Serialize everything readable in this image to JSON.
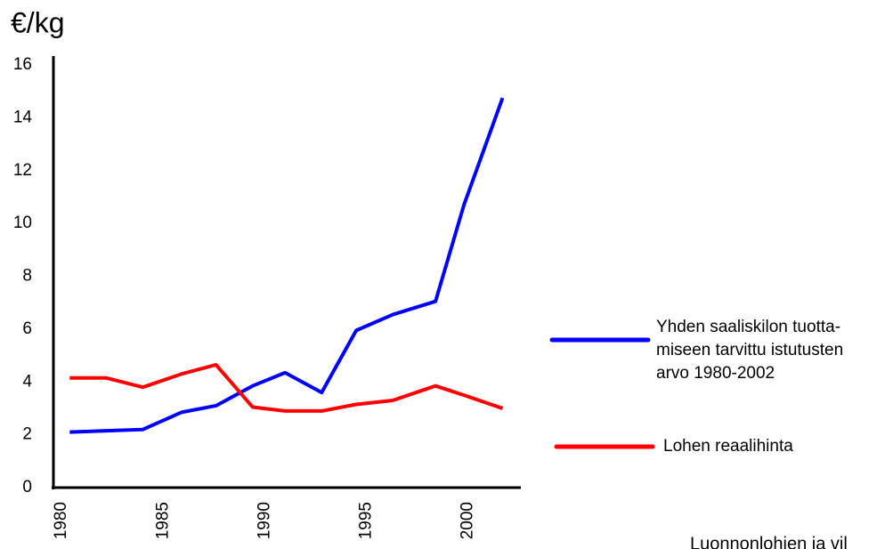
{
  "chart_data": {
    "type": "line",
    "y_label": "€/kg",
    "x": [
      1980.4,
      1982.2,
      1984.0,
      1985.9,
      1987.6,
      1989.4,
      1991.0,
      1992.8,
      1994.5,
      1996.3,
      1998.4,
      1999.8,
      2001.7
    ],
    "series": [
      {
        "name": "Yhden saaliskilon tuotta-\nmiseen tarvittu istutusten\narvo 1980-2002",
        "color": "#0000ff",
        "values": [
          2.1,
          2.15,
          2.2,
          2.85,
          3.1,
          3.85,
          4.35,
          3.6,
          5.95,
          6.55,
          7.05,
          10.7,
          14.75
        ]
      },
      {
        "name": "Lohen reaalihinta",
        "color": "#ff0000",
        "values": [
          4.15,
          4.15,
          3.8,
          4.3,
          4.65,
          3.05,
          2.9,
          2.9,
          3.15,
          3.3,
          3.85,
          3.5,
          3.0
        ]
      }
    ],
    "xlim": [
      1979.6,
      2002.6
    ],
    "xticks": [
      1980,
      1985,
      1990,
      1995,
      2000
    ],
    "ylim": [
      0,
      16
    ],
    "yticks": [
      0,
      2,
      4,
      6,
      8,
      10,
      12,
      14,
      16
    ],
    "grid": false,
    "source": "Luonnonlohien ja vil"
  }
}
